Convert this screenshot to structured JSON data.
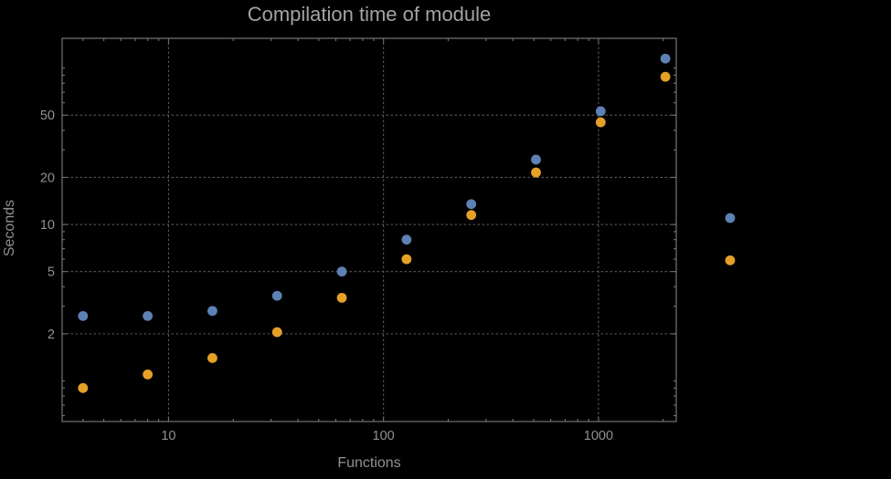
{
  "chart_data": {
    "type": "scatter",
    "title": "Compilation time of module",
    "xlabel": "Functions",
    "ylabel": "Seconds",
    "x_scale": "log",
    "y_scale": "log",
    "xlim": [
      3.2,
      2300
    ],
    "ylim": [
      0.55,
      155
    ],
    "x_ticks": [
      10,
      100,
      1000
    ],
    "y_ticks": [
      2,
      5,
      10,
      20,
      50
    ],
    "grid": "dotted",
    "legend": "none",
    "clipping": false,
    "series": [
      {
        "name": "blue-series",
        "color": "#5e81b5",
        "points": [
          [
            4,
            2.6
          ],
          [
            8,
            2.6
          ],
          [
            16,
            2.8
          ],
          [
            32,
            3.5
          ],
          [
            64,
            5.0
          ],
          [
            128,
            8.0
          ],
          [
            256,
            13.5
          ],
          [
            512,
            26
          ],
          [
            1024,
            53
          ],
          [
            2048,
            115
          ],
          [
            4096,
            11
          ]
        ]
      },
      {
        "name": "orange-series",
        "color": "#e5a028",
        "points": [
          [
            4,
            0.9
          ],
          [
            8,
            1.1
          ],
          [
            16,
            1.4
          ],
          [
            32,
            2.05
          ],
          [
            64,
            3.4
          ],
          [
            128,
            6.0
          ],
          [
            256,
            11.5
          ],
          [
            512,
            21.5
          ],
          [
            1024,
            45
          ],
          [
            2048,
            88
          ],
          [
            4096,
            5.9
          ]
        ]
      }
    ],
    "colors": {
      "background": "#000000",
      "frame": "#747474",
      "grid": "#5c5c5c",
      "text": "#919191",
      "title": "#a3a3a3"
    }
  }
}
